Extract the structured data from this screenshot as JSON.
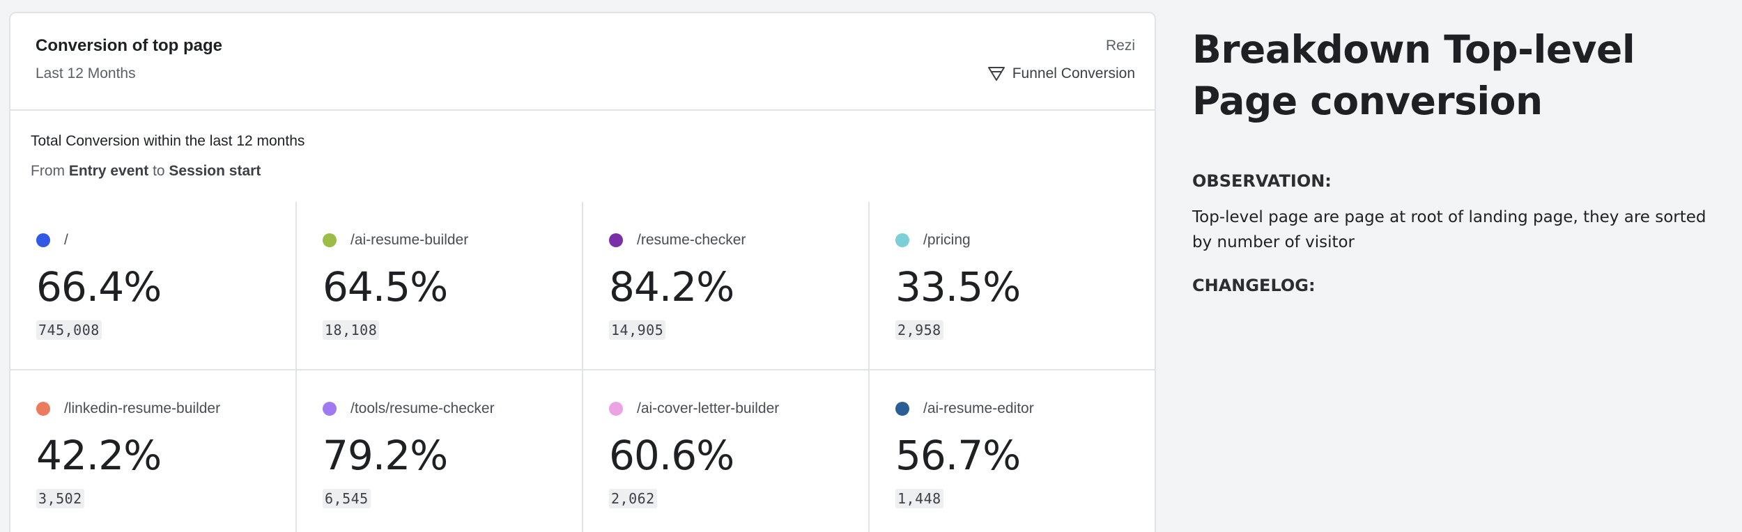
{
  "card": {
    "title": "Conversion of top page",
    "subtitle": "Last 12 Months",
    "project": "Rezi",
    "type_label": "Funnel Conversion",
    "type_icon": "funnel-icon"
  },
  "summary": {
    "line1": "Total Conversion within the last 12 months",
    "from_word": "From",
    "from_event": "Entry event",
    "to_word": "to",
    "to_event": "Session start"
  },
  "metrics": [
    {
      "label": "/",
      "percent": "66.4%",
      "count": "745,008",
      "color": "#3259e6"
    },
    {
      "label": "/ai-resume-builder",
      "percent": "64.5%",
      "count": "18,108",
      "color": "#9bbd45"
    },
    {
      "label": "/resume-checker",
      "percent": "84.2%",
      "count": "14,905",
      "color": "#7b2fa6"
    },
    {
      "label": "/pricing",
      "percent": "33.5%",
      "count": "2,958",
      "color": "#7ccfd6"
    },
    {
      "label": "/linkedin-resume-builder",
      "percent": "42.2%",
      "count": "3,502",
      "color": "#ec7b5d"
    },
    {
      "label": "/tools/resume-checker",
      "percent": "79.2%",
      "count": "6,545",
      "color": "#a07af2"
    },
    {
      "label": "/ai-cover-letter-builder",
      "percent": "60.6%",
      "count": "2,062",
      "color": "#eba3e4"
    },
    {
      "label": "/ai-resume-editor",
      "percent": "56.7%",
      "count": "1,448",
      "color": "#2a5e95"
    }
  ],
  "side": {
    "title": "Breakdown Top-level Page conversion",
    "observation_heading": "OBSERVATION:",
    "observation_text": "Top-level page are page at root of landing page, they are sorted by number of visitor",
    "changelog_heading": "CHANGELOG:"
  }
}
